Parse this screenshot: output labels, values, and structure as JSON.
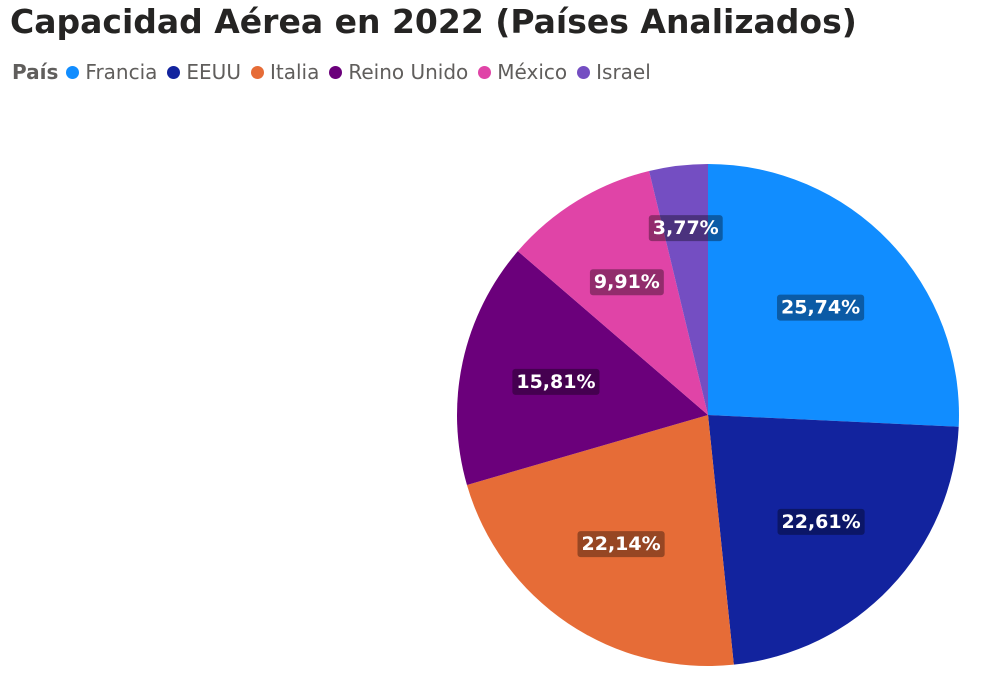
{
  "chart_data": {
    "type": "pie",
    "title": "Capacidad Aérea en 2022 (Países Analizados)",
    "legend_title": "País",
    "legend_position": "top-left",
    "start_angle_deg": 0,
    "direction": "clockwise",
    "slices": [
      {
        "name": "Francia",
        "value": 25.74,
        "label": "25,74%",
        "color": "#118DFF"
      },
      {
        "name": "EEUU",
        "value": 22.61,
        "label": "22,61%",
        "color": "#12239E"
      },
      {
        "name": "Italia",
        "value": 22.14,
        "label": "22,14%",
        "color": "#E66C37"
      },
      {
        "name": "Reino Unido",
        "value": 15.81,
        "label": "15,81%",
        "color": "#6B007B"
      },
      {
        "name": "México",
        "value": 9.91,
        "label": "9,91%",
        "color": "#E044A7"
      },
      {
        "name": "Israel",
        "value": 3.77,
        "label": "3,77%",
        "color": "#744EC2"
      }
    ]
  }
}
